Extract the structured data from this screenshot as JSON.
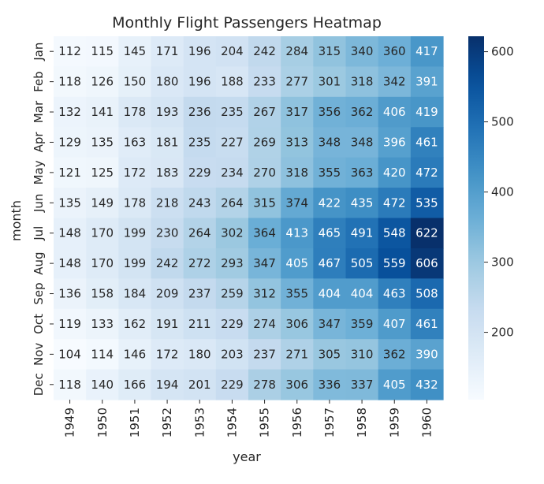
{
  "chart_data": {
    "type": "heatmap",
    "title": "Monthly Flight Passengers Heatmap",
    "xlabel": "year",
    "ylabel": "month",
    "x_categories": [
      "1949",
      "1950",
      "1951",
      "1952",
      "1953",
      "1954",
      "1955",
      "1956",
      "1957",
      "1958",
      "1959",
      "1960"
    ],
    "y_categories": [
      "Jan",
      "Feb",
      "Mar",
      "Apr",
      "May",
      "Jun",
      "Jul",
      "Aug",
      "Sep",
      "Oct",
      "Nov",
      "Dec"
    ],
    "values": [
      [
        112,
        115,
        145,
        171,
        196,
        204,
        242,
        284,
        315,
        340,
        360,
        417
      ],
      [
        118,
        126,
        150,
        180,
        196,
        188,
        233,
        277,
        301,
        318,
        342,
        391
      ],
      [
        132,
        141,
        178,
        193,
        236,
        235,
        267,
        317,
        356,
        362,
        406,
        419
      ],
      [
        129,
        135,
        163,
        181,
        235,
        227,
        269,
        313,
        348,
        348,
        396,
        461
      ],
      [
        121,
        125,
        172,
        183,
        229,
        234,
        270,
        318,
        355,
        363,
        420,
        472
      ],
      [
        135,
        149,
        178,
        218,
        243,
        264,
        315,
        374,
        422,
        435,
        472,
        535
      ],
      [
        148,
        170,
        199,
        230,
        264,
        302,
        364,
        413,
        465,
        491,
        548,
        622
      ],
      [
        148,
        170,
        199,
        242,
        272,
        293,
        347,
        405,
        467,
        505,
        559,
        606
      ],
      [
        136,
        158,
        184,
        209,
        237,
        259,
        312,
        355,
        404,
        404,
        463,
        508
      ],
      [
        119,
        133,
        162,
        191,
        211,
        229,
        274,
        306,
        347,
        359,
        407,
        461
      ],
      [
        104,
        114,
        146,
        172,
        180,
        203,
        237,
        271,
        305,
        310,
        362,
        390
      ],
      [
        118,
        140,
        166,
        194,
        201,
        229,
        278,
        306,
        336,
        337,
        405,
        432
      ]
    ],
    "colormap": "Blues",
    "vmin": 104,
    "vmax": 622,
    "colorbar_ticks": [
      200,
      300,
      400,
      500,
      600
    ],
    "annotate": true
  }
}
